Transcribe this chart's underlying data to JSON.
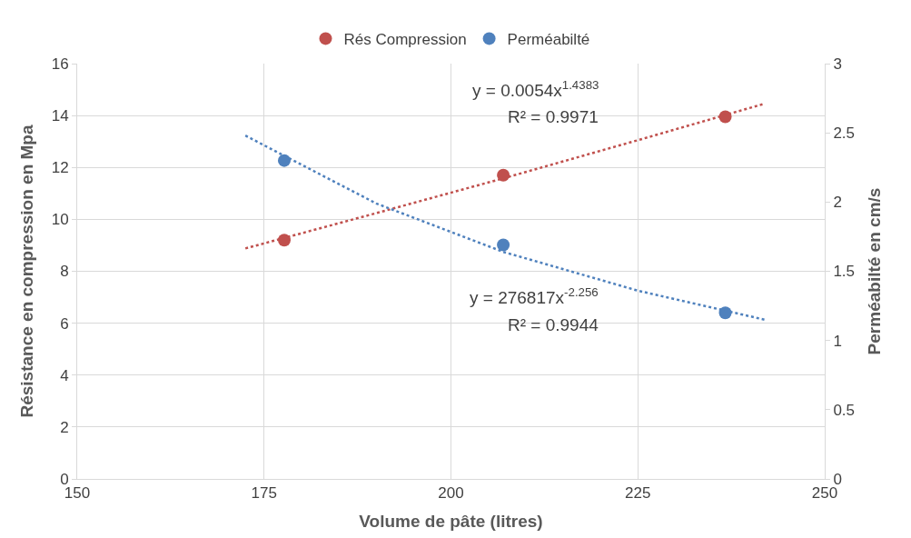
{
  "chart_data": {
    "type": "scatter",
    "xlabel": "Volume de pâte (litres)",
    "ylabel": "Résistance en compression en Mpa",
    "y2label": "Perméabilté en cm/s",
    "x": [
      177.7,
      207,
      236.7
    ],
    "series": [
      {
        "name": "Rés Compression",
        "color": "#c0504d",
        "values": [
          9.2,
          11.7,
          13.95
        ]
      },
      {
        "name": "Perméabilté",
        "color": "#4f81bd",
        "values": [
          2.3,
          1.69,
          1.2
        ],
        "axis": "y2"
      },
      {
        "type": "line",
        "color": "#c0504d",
        "line_style": "dotted",
        "marker": "none",
        "x": [
          172.5,
          190,
          207,
          225,
          242
        ],
        "values": [
          8.88,
          10.24,
          11.58,
          13.05,
          14.46
        ]
      },
      {
        "type": "line",
        "color": "#4f81bd",
        "line_style": "dotted",
        "marker": "none",
        "axis": "y2",
        "x": [
          172.5,
          190,
          207,
          225,
          242
        ],
        "values": [
          2.48,
          1.99,
          1.64,
          1.36,
          1.15
        ]
      }
    ],
    "xlim": [
      150,
      250
    ],
    "xticks": [
      150,
      175,
      200,
      225,
      250
    ],
    "ylim": [
      0,
      16
    ],
    "yticks": [
      0,
      2,
      4,
      6,
      8,
      10,
      12,
      14,
      16
    ],
    "y2lim": [
      0,
      3
    ],
    "y2ticks": [
      0,
      0.5,
      1,
      1.5,
      2,
      2.5,
      3
    ],
    "annotations": [
      "y = 0.0054x$^{1.4383}$",
      "R² = 0.9971",
      "y = 276817x$^{-2.256}$",
      "R² = 0.9944"
    ],
    "grid": true,
    "legend": "top",
    "marker": "circle"
  }
}
